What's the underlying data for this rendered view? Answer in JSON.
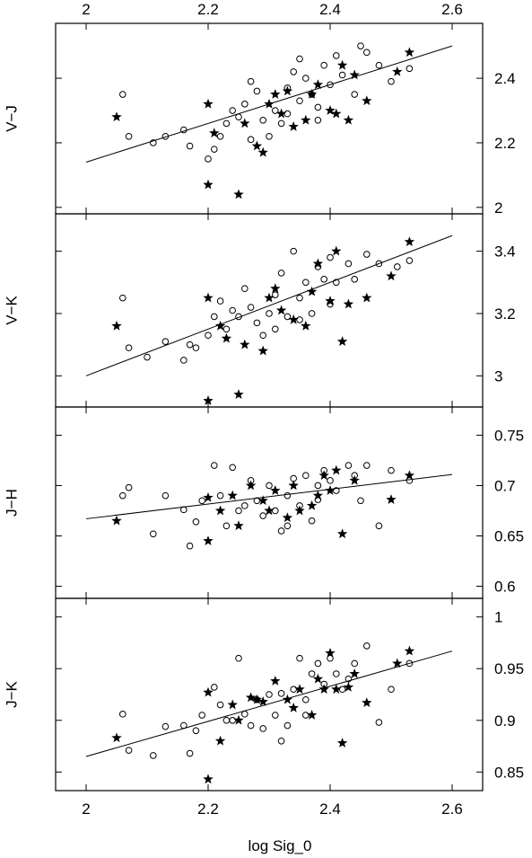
{
  "chart_data": [
    {
      "type": "scatter",
      "ylabel": "V−J",
      "xlim": [
        1.95,
        2.65
      ],
      "ylim": [
        1.98,
        2.57
      ],
      "yticks": [
        2,
        2.2,
        2.4
      ],
      "yticklabels": [
        "2",
        "2.2",
        "2.4"
      ],
      "fit_line": {
        "x": [
          2.0,
          2.6
        ],
        "y": [
          2.14,
          2.5
        ]
      },
      "series": [
        {
          "marker": "open-circle",
          "points": [
            [
              2.06,
              2.35
            ],
            [
              2.07,
              2.22
            ],
            [
              2.11,
              2.2
            ],
            [
              2.13,
              2.22
            ],
            [
              2.16,
              2.24
            ],
            [
              2.17,
              2.19
            ],
            [
              2.2,
              2.15
            ],
            [
              2.21,
              2.18
            ],
            [
              2.22,
              2.22
            ],
            [
              2.23,
              2.26
            ],
            [
              2.24,
              2.3
            ],
            [
              2.25,
              2.28
            ],
            [
              2.26,
              2.32
            ],
            [
              2.27,
              2.39
            ],
            [
              2.28,
              2.36
            ],
            [
              2.3,
              2.22
            ],
            [
              2.31,
              2.3
            ],
            [
              2.32,
              2.26
            ],
            [
              2.33,
              2.37
            ],
            [
              2.34,
              2.42
            ],
            [
              2.35,
              2.33
            ],
            [
              2.36,
              2.4
            ],
            [
              2.37,
              2.35
            ],
            [
              2.38,
              2.31
            ],
            [
              2.39,
              2.44
            ],
            [
              2.4,
              2.38
            ],
            [
              2.41,
              2.47
            ],
            [
              2.42,
              2.41
            ],
            [
              2.44,
              2.35
            ],
            [
              2.46,
              2.48
            ],
            [
              2.48,
              2.44
            ],
            [
              2.5,
              2.39
            ],
            [
              2.53,
              2.43
            ],
            [
              2.29,
              2.27
            ],
            [
              2.33,
              2.29
            ],
            [
              2.38,
              2.27
            ],
            [
              2.27,
              2.21
            ],
            [
              2.35,
              2.46
            ],
            [
              2.45,
              2.5
            ]
          ]
        },
        {
          "marker": "filled-star",
          "points": [
            [
              2.05,
              2.28
            ],
            [
              2.2,
              2.07
            ],
            [
              2.25,
              2.04
            ],
            [
              2.21,
              2.23
            ],
            [
              2.2,
              2.32
            ],
            [
              2.26,
              2.26
            ],
            [
              2.28,
              2.19
            ],
            [
              2.29,
              2.17
            ],
            [
              2.31,
              2.35
            ],
            [
              2.32,
              2.29
            ],
            [
              2.34,
              2.25
            ],
            [
              2.36,
              2.27
            ],
            [
              2.38,
              2.38
            ],
            [
              2.4,
              2.3
            ],
            [
              2.42,
              2.44
            ],
            [
              2.44,
              2.41
            ],
            [
              2.46,
              2.33
            ],
            [
              2.51,
              2.42
            ],
            [
              2.53,
              2.48
            ],
            [
              2.3,
              2.32
            ],
            [
              2.37,
              2.35
            ],
            [
              2.41,
              2.29
            ],
            [
              2.43,
              2.27
            ],
            [
              2.33,
              2.36
            ]
          ]
        }
      ]
    },
    {
      "type": "scatter",
      "ylabel": "V−K",
      "xlim": [
        1.95,
        2.65
      ],
      "ylim": [
        2.9,
        3.52
      ],
      "yticks": [
        3,
        3.2,
        3.4
      ],
      "yticklabels": [
        "3",
        "3.2",
        "3.4"
      ],
      "fit_line": {
        "x": [
          2.0,
          2.6
        ],
        "y": [
          3.0,
          3.45
        ]
      },
      "series": [
        {
          "marker": "open-circle",
          "points": [
            [
              2.06,
              3.25
            ],
            [
              2.07,
              3.09
            ],
            [
              2.1,
              3.06
            ],
            [
              2.13,
              3.11
            ],
            [
              2.16,
              3.05
            ],
            [
              2.17,
              3.1
            ],
            [
              2.18,
              3.09
            ],
            [
              2.2,
              3.13
            ],
            [
              2.21,
              3.19
            ],
            [
              2.22,
              3.24
            ],
            [
              2.24,
              3.21
            ],
            [
              2.25,
              3.19
            ],
            [
              2.26,
              3.28
            ],
            [
              2.27,
              3.22
            ],
            [
              2.28,
              3.17
            ],
            [
              2.29,
              3.13
            ],
            [
              2.3,
              3.2
            ],
            [
              2.31,
              3.26
            ],
            [
              2.32,
              3.33
            ],
            [
              2.33,
              3.19
            ],
            [
              2.34,
              3.4
            ],
            [
              2.35,
              3.25
            ],
            [
              2.36,
              3.3
            ],
            [
              2.37,
              3.2
            ],
            [
              2.38,
              3.35
            ],
            [
              2.39,
              3.31
            ],
            [
              2.4,
              3.38
            ],
            [
              2.41,
              3.3
            ],
            [
              2.43,
              3.36
            ],
            [
              2.44,
              3.31
            ],
            [
              2.46,
              3.39
            ],
            [
              2.48,
              3.36
            ],
            [
              2.51,
              3.35
            ],
            [
              2.53,
              3.37
            ],
            [
              2.23,
              3.15
            ],
            [
              2.31,
              3.15
            ],
            [
              2.35,
              3.18
            ],
            [
              2.4,
              3.23
            ]
          ]
        },
        {
          "marker": "filled-star",
          "points": [
            [
              2.05,
              3.16
            ],
            [
              2.2,
              2.92
            ],
            [
              2.25,
              2.94
            ],
            [
              2.2,
              3.25
            ],
            [
              2.22,
              3.16
            ],
            [
              2.23,
              3.12
            ],
            [
              2.26,
              3.1
            ],
            [
              2.29,
              3.08
            ],
            [
              2.31,
              3.28
            ],
            [
              2.32,
              3.21
            ],
            [
              2.34,
              3.18
            ],
            [
              2.36,
              3.16
            ],
            [
              2.38,
              3.36
            ],
            [
              2.4,
              3.24
            ],
            [
              2.41,
              3.4
            ],
            [
              2.43,
              3.23
            ],
            [
              2.46,
              3.25
            ],
            [
              2.5,
              3.32
            ],
            [
              2.53,
              3.43
            ],
            [
              2.42,
              3.11
            ],
            [
              2.3,
              3.25
            ],
            [
              2.37,
              3.27
            ]
          ]
        }
      ]
    },
    {
      "type": "scatter",
      "ylabel": "J−H",
      "xlim": [
        1.95,
        2.65
      ],
      "ylim": [
        0.588,
        0.778
      ],
      "yticks": [
        0.6,
        0.65,
        0.7,
        0.75
      ],
      "yticklabels": [
        "0.6",
        "0.65",
        "0.7",
        "0.75"
      ],
      "fit_line": {
        "x": [
          2.0,
          2.6
        ],
        "y": [
          0.667,
          0.711
        ]
      },
      "series": [
        {
          "marker": "open-circle",
          "points": [
            [
              2.06,
              0.69
            ],
            [
              2.07,
              0.698
            ],
            [
              2.11,
              0.652
            ],
            [
              2.13,
              0.69
            ],
            [
              2.16,
              0.676
            ],
            [
              2.17,
              0.64
            ],
            [
              2.18,
              0.664
            ],
            [
              2.19,
              0.685
            ],
            [
              2.21,
              0.72
            ],
            [
              2.22,
              0.69
            ],
            [
              2.24,
              0.718
            ],
            [
              2.25,
              0.675
            ],
            [
              2.26,
              0.68
            ],
            [
              2.27,
              0.705
            ],
            [
              2.28,
              0.685
            ],
            [
              2.29,
              0.67
            ],
            [
              2.3,
              0.7
            ],
            [
              2.31,
              0.675
            ],
            [
              2.32,
              0.655
            ],
            [
              2.33,
              0.69
            ],
            [
              2.34,
              0.707
            ],
            [
              2.35,
              0.68
            ],
            [
              2.36,
              0.71
            ],
            [
              2.37,
              0.665
            ],
            [
              2.38,
              0.7
            ],
            [
              2.39,
              0.715
            ],
            [
              2.4,
              0.705
            ],
            [
              2.41,
              0.695
            ],
            [
              2.43,
              0.72
            ],
            [
              2.44,
              0.71
            ],
            [
              2.46,
              0.72
            ],
            [
              2.48,
              0.66
            ],
            [
              2.5,
              0.715
            ],
            [
              2.53,
              0.705
            ],
            [
              2.23,
              0.66
            ],
            [
              2.33,
              0.66
            ],
            [
              2.38,
              0.686
            ],
            [
              2.45,
              0.685
            ]
          ]
        },
        {
          "marker": "filled-star",
          "points": [
            [
              2.05,
              0.665
            ],
            [
              2.2,
              0.645
            ],
            [
              2.2,
              0.688
            ],
            [
              2.22,
              0.675
            ],
            [
              2.25,
              0.66
            ],
            [
              2.27,
              0.7
            ],
            [
              2.29,
              0.685
            ],
            [
              2.31,
              0.695
            ],
            [
              2.33,
              0.668
            ],
            [
              2.35,
              0.675
            ],
            [
              2.37,
              0.68
            ],
            [
              2.38,
              0.69
            ],
            [
              2.4,
              0.695
            ],
            [
              2.41,
              0.715
            ],
            [
              2.42,
              0.652
            ],
            [
              2.44,
              0.705
            ],
            [
              2.5,
              0.686
            ],
            [
              2.53,
              0.71
            ],
            [
              2.24,
              0.69
            ],
            [
              2.3,
              0.675
            ],
            [
              2.34,
              0.7
            ],
            [
              2.39,
              0.71
            ]
          ]
        }
      ]
    },
    {
      "type": "scatter",
      "ylabel": "J−K",
      "xlim": [
        1.95,
        2.65
      ],
      "ylim": [
        0.832,
        1.018
      ],
      "yticks": [
        0.85,
        0.9,
        0.95,
        1
      ],
      "yticklabels": [
        "0.85",
        "0.9",
        "0.95",
        "1"
      ],
      "fit_line": {
        "x": [
          2.0,
          2.6
        ],
        "y": [
          0.865,
          0.967
        ]
      },
      "series": [
        {
          "marker": "open-circle",
          "points": [
            [
              2.06,
              0.906
            ],
            [
              2.07,
              0.871
            ],
            [
              2.11,
              0.866
            ],
            [
              2.13,
              0.894
            ],
            [
              2.16,
              0.895
            ],
            [
              2.17,
              0.868
            ],
            [
              2.18,
              0.89
            ],
            [
              2.19,
              0.905
            ],
            [
              2.21,
              0.932
            ],
            [
              2.22,
              0.915
            ],
            [
              2.24,
              0.9
            ],
            [
              2.25,
              0.96
            ],
            [
              2.26,
              0.906
            ],
            [
              2.27,
              0.895
            ],
            [
              2.28,
              0.92
            ],
            [
              2.29,
              0.892
            ],
            [
              2.3,
              0.925
            ],
            [
              2.31,
              0.905
            ],
            [
              2.32,
              0.926
            ],
            [
              2.33,
              0.895
            ],
            [
              2.34,
              0.93
            ],
            [
              2.35,
              0.96
            ],
            [
              2.36,
              0.92
            ],
            [
              2.37,
              0.945
            ],
            [
              2.38,
              0.955
            ],
            [
              2.39,
              0.935
            ],
            [
              2.4,
              0.96
            ],
            [
              2.41,
              0.945
            ],
            [
              2.43,
              0.94
            ],
            [
              2.44,
              0.955
            ],
            [
              2.46,
              0.972
            ],
            [
              2.48,
              0.898
            ],
            [
              2.5,
              0.93
            ],
            [
              2.53,
              0.955
            ],
            [
              2.23,
              0.9
            ],
            [
              2.32,
              0.88
            ],
            [
              2.36,
              0.905
            ],
            [
              2.42,
              0.93
            ]
          ]
        },
        {
          "marker": "filled-star",
          "points": [
            [
              2.05,
              0.883
            ],
            [
              2.2,
              0.843
            ],
            [
              2.2,
              0.927
            ],
            [
              2.22,
              0.88
            ],
            [
              2.25,
              0.9
            ],
            [
              2.27,
              0.922
            ],
            [
              2.29,
              0.918
            ],
            [
              2.31,
              0.938
            ],
            [
              2.33,
              0.92
            ],
            [
              2.35,
              0.93
            ],
            [
              2.37,
              0.905
            ],
            [
              2.39,
              0.93
            ],
            [
              2.41,
              0.93
            ],
            [
              2.42,
              0.878
            ],
            [
              2.44,
              0.945
            ],
            [
              2.46,
              0.917
            ],
            [
              2.51,
              0.955
            ],
            [
              2.53,
              0.967
            ],
            [
              2.24,
              0.915
            ],
            [
              2.28,
              0.92
            ],
            [
              2.34,
              0.912
            ],
            [
              2.38,
              0.94
            ],
            [
              2.4,
              0.965
            ],
            [
              2.43,
              0.932
            ]
          ]
        }
      ]
    }
  ],
  "x_axis": {
    "xticks": [
      2,
      2.2,
      2.4,
      2.6
    ],
    "xticklabels": [
      "2",
      "2.2",
      "2.4",
      "2.6"
    ],
    "xlabel": "log Sig_0"
  }
}
